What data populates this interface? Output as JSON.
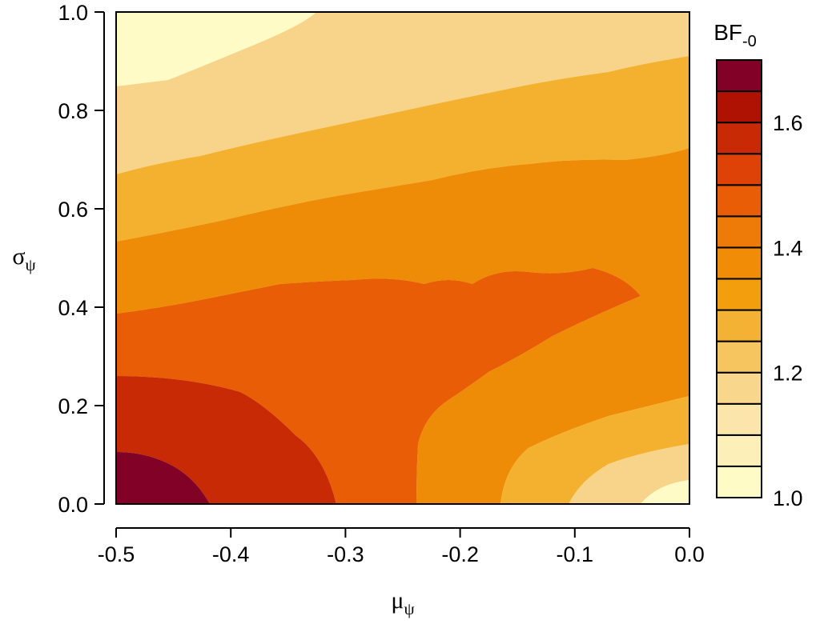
{
  "chart_data": {
    "type": "heatmap",
    "subtype": "filled-contour",
    "xlabel": "μ",
    "xlabel_sub": "ψ",
    "ylabel": "σ",
    "ylabel_sub": "ψ",
    "xlim": [
      -0.5,
      0.0
    ],
    "ylim": [
      0.0,
      1.0
    ],
    "x_ticks": [
      "-0.5",
      "-0.4",
      "-0.3",
      "-0.2",
      "-0.1",
      "0.0"
    ],
    "y_ticks": [
      "0.0",
      "0.2",
      "0.4",
      "0.6",
      "0.8",
      "1.0"
    ],
    "colorbar": {
      "title": "BF",
      "title_sub": "-0",
      "range": [
        1.0,
        1.7
      ],
      "ticks": [
        "1.0",
        "1.2",
        "1.4",
        "1.6"
      ],
      "levels": [
        1.0,
        1.05,
        1.1,
        1.15,
        1.2,
        1.25,
        1.3,
        1.35,
        1.4,
        1.45,
        1.5,
        1.55,
        1.6,
        1.65,
        1.7
      ],
      "colors": [
        "#fefbc7",
        "#fcefb8",
        "#fbe5aa",
        "#f8d68c",
        "#f6c55f",
        "#f4b235",
        "#f39f0d",
        "#f18c07",
        "#ee7b07",
        "#e85d06",
        "#df4206",
        "#c82a06",
        "#af1102",
        "#820127"
      ]
    },
    "regions": [
      {
        "level": "1.65-1.70",
        "color": "#820127"
      },
      {
        "level": "1.55-1.60",
        "color": "#c82a06"
      },
      {
        "level": "1.45-1.50",
        "color": "#e85d06"
      },
      {
        "level": "1.35-1.40",
        "color": "#ee8c08"
      },
      {
        "level": "1.25-1.30",
        "color": "#f3b12f"
      },
      {
        "level": "1.15-1.20",
        "color": "#f8d48a"
      },
      {
        "level": "1.05-1.10",
        "color": "#fcefb8"
      },
      {
        "level": "1.00-1.05",
        "color": "#fefbc7"
      }
    ]
  }
}
